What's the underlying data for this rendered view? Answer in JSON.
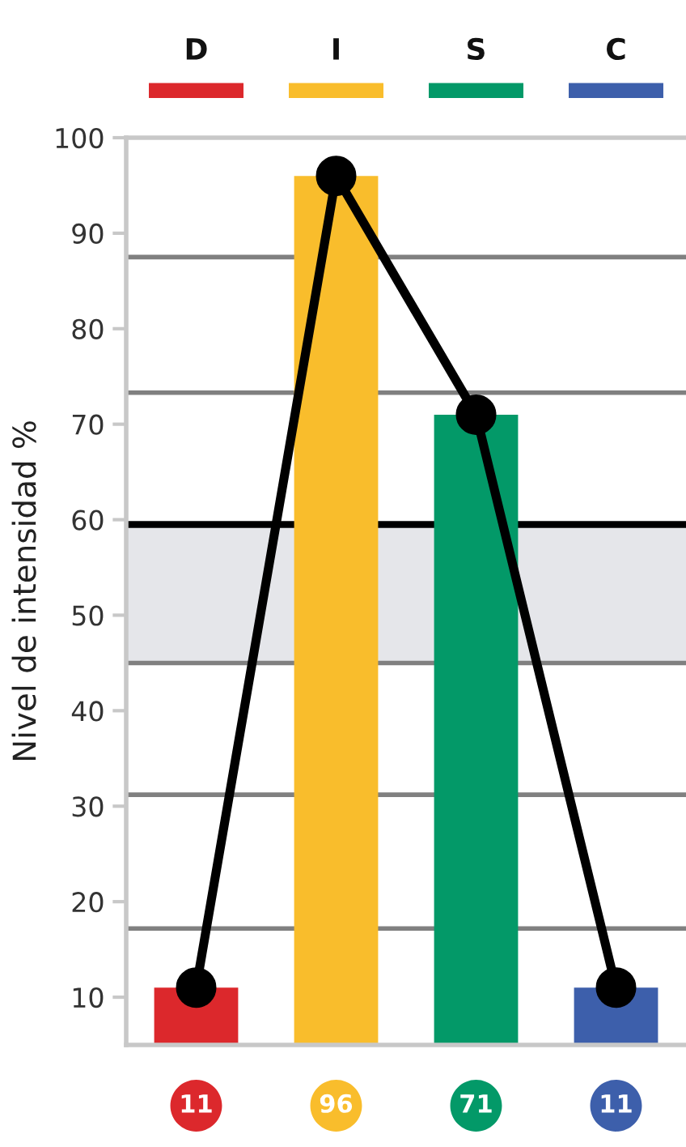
{
  "chart_data": {
    "type": "bar",
    "ylabel": "Nivel de intensidad %",
    "categories": [
      "D",
      "I",
      "S",
      "C"
    ],
    "series": [
      {
        "colors": [
          "#dc282c",
          "#f9bd2c",
          "#039968",
          "#3d5fab"
        ],
        "values": [
          11,
          96,
          71,
          11
        ],
        "value_labels": [
          "11",
          "96",
          "71",
          "11"
        ]
      },
      {
        "type": "line",
        "color": "#000000",
        "values": [
          11,
          96,
          71,
          11
        ],
        "marker": "circle",
        "line_style": "solid"
      }
    ],
    "ylim": [
      5,
      100
    ],
    "yticks": [
      10,
      20,
      30,
      40,
      50,
      60,
      70,
      80,
      90,
      100
    ],
    "ref_lines": [
      {
        "axis": "y",
        "value": 87.5,
        "color": "#808080"
      },
      {
        "axis": "y",
        "value": 73.3,
        "color": "#808080"
      },
      {
        "axis": "y",
        "value": 59.5,
        "color": "#000000"
      },
      {
        "axis": "y",
        "value": 45,
        "color": "#808080"
      },
      {
        "axis": "y",
        "value": 31.2,
        "color": "#808080"
      },
      {
        "axis": "y",
        "value": 17.2,
        "color": "#808080"
      }
    ],
    "bands": [
      {
        "axis": "y",
        "from": 45,
        "to": 59.5,
        "color": "#e5e6ea"
      }
    ],
    "grid": false,
    "legend": false
  }
}
